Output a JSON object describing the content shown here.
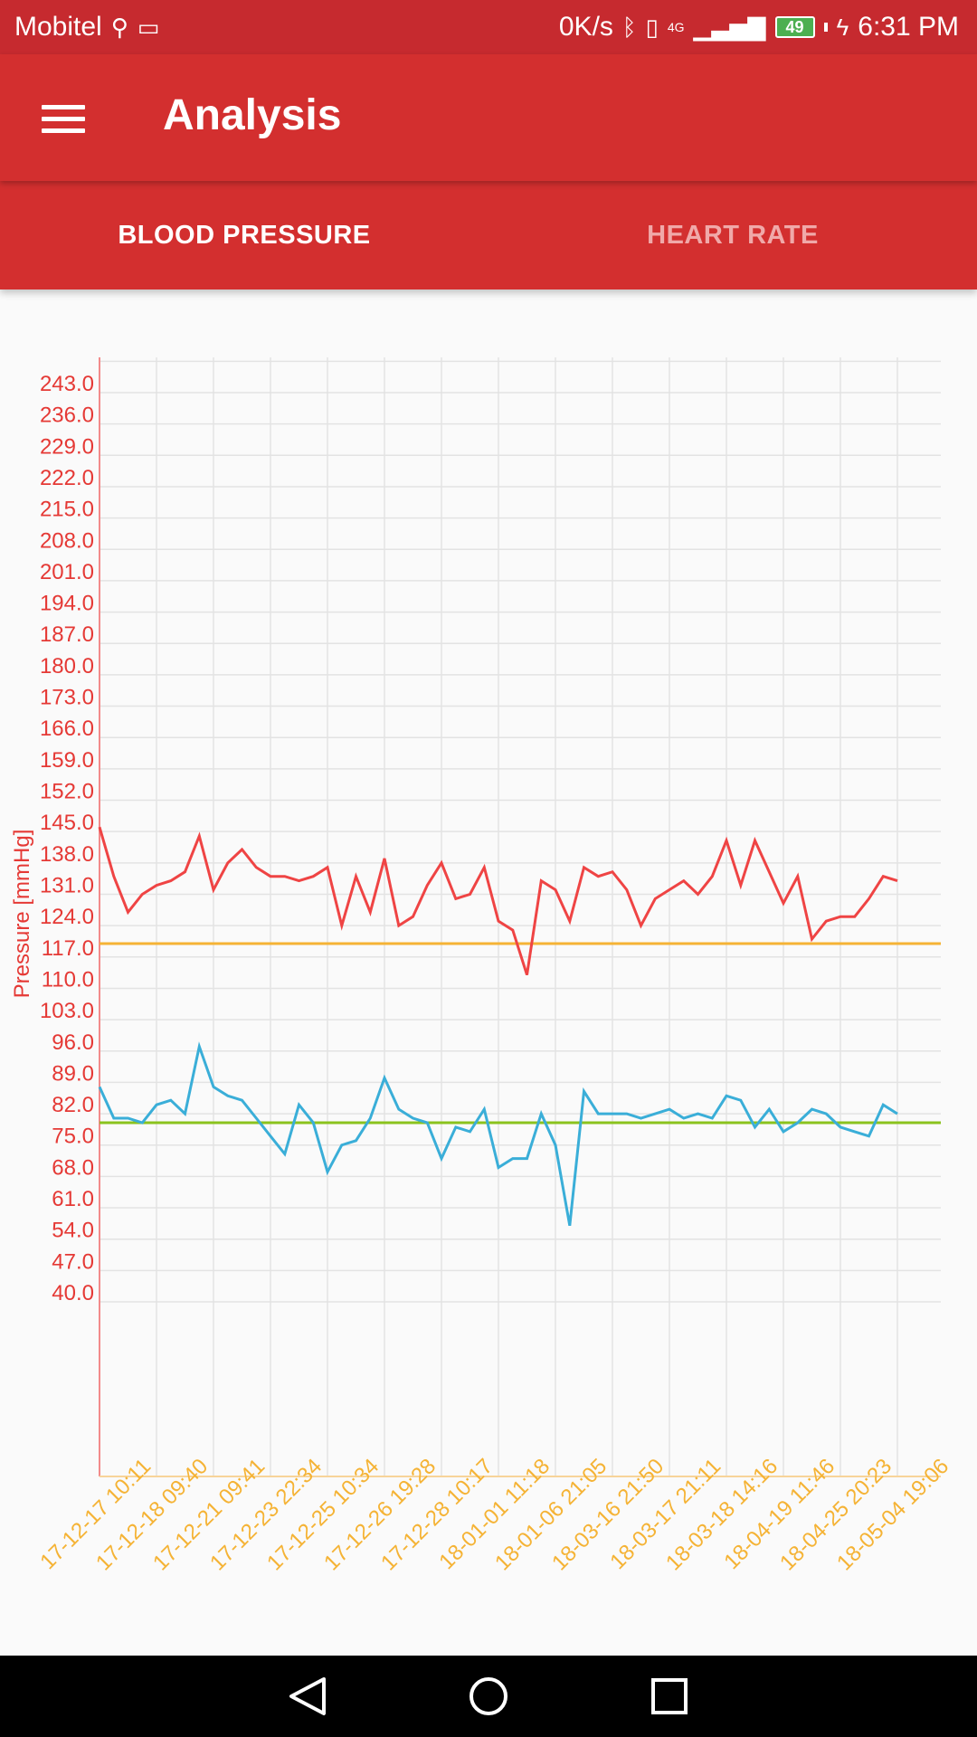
{
  "status_bar": {
    "carrier": "Mobitel",
    "speed": "0K/s",
    "network": "4G",
    "battery": "49",
    "time": "6:31 PM",
    "icons": [
      "usb-icon",
      "laptop-icon",
      "bluetooth-icon",
      "vibrate-icon",
      "signal-icon",
      "battery-icon",
      "charging-icon"
    ]
  },
  "app_bar": {
    "title": "Analysis",
    "menu_icon": "hamburger-menu-icon"
  },
  "tabs": [
    {
      "label": "BLOOD PRESSURE",
      "active": true
    },
    {
      "label": "HEART RATE",
      "active": false
    }
  ],
  "colors": {
    "app_bar": "#d32f2f",
    "status_bar": "#c62a2f",
    "systolic_line": "#ef4444",
    "diastolic_line": "#3aaed8",
    "systolic_ref_line": "#f5b335",
    "diastolic_ref_line": "#8bc31d",
    "y_axis_labels": "#e53935",
    "x_axis_labels": "#f5b335"
  },
  "chart_data": {
    "type": "line",
    "ylabel": "Pressure [mmHg]",
    "ylim": [
      40,
      243
    ],
    "y_ticks": [
      "243.0",
      "236.0",
      "229.0",
      "222.0",
      "215.0",
      "208.0",
      "201.0",
      "194.0",
      "187.0",
      "180.0",
      "173.0",
      "166.0",
      "159.0",
      "152.0",
      "145.0",
      "138.0",
      "131.0",
      "124.0",
      "117.0",
      "110.0",
      "103.0",
      "96.0",
      "89.0",
      "82.0",
      "75.0",
      "68.0",
      "61.0",
      "54.0",
      "47.0",
      "40.0"
    ],
    "x_tick_labels": [
      "17-12-17 10:11",
      "17-12-18 09:40",
      "17-12-21 09:41",
      "17-12-23 22:34",
      "17-12-25 10:34",
      "17-12-26 19:28",
      "17-12-28 10:17",
      "18-01-01 11:18",
      "18-01-06 21:05",
      "18-03-16 21:50",
      "18-03-17 21:11",
      "18-03-18 14:16",
      "18-04-19 11:46",
      "18-04-25 20:23",
      "18-05-04 19:06"
    ],
    "reference_lines": [
      {
        "value": 120,
        "color": "#f5b335"
      },
      {
        "value": 80,
        "color": "#8bc31d"
      }
    ],
    "series": [
      {
        "color": "#ef4444",
        "values": [
          146,
          135,
          127,
          131,
          133,
          134,
          136,
          144,
          132,
          138,
          141,
          137,
          135,
          135,
          134,
          135,
          137,
          124,
          135,
          127,
          139,
          124,
          126,
          133,
          138,
          130,
          131,
          137,
          125,
          123,
          113,
          134,
          132,
          125,
          137,
          135,
          136,
          132,
          124,
          130,
          132,
          134,
          131,
          135,
          143,
          133,
          143,
          136,
          129,
          135,
          121,
          125,
          126,
          126,
          130,
          135,
          134
        ]
      },
      {
        "color": "#3aaed8",
        "values": [
          88,
          81,
          81,
          80,
          84,
          85,
          82,
          97,
          88,
          86,
          85,
          81,
          77,
          73,
          84,
          80,
          69,
          75,
          76,
          81,
          90,
          83,
          81,
          80,
          72,
          79,
          78,
          83,
          70,
          72,
          72,
          82,
          75,
          57,
          87,
          82,
          82,
          82,
          81,
          82,
          83,
          81,
          82,
          81,
          86,
          85,
          79,
          83,
          78,
          80,
          83,
          82,
          79,
          78,
          77,
          84,
          82
        ]
      }
    ]
  }
}
